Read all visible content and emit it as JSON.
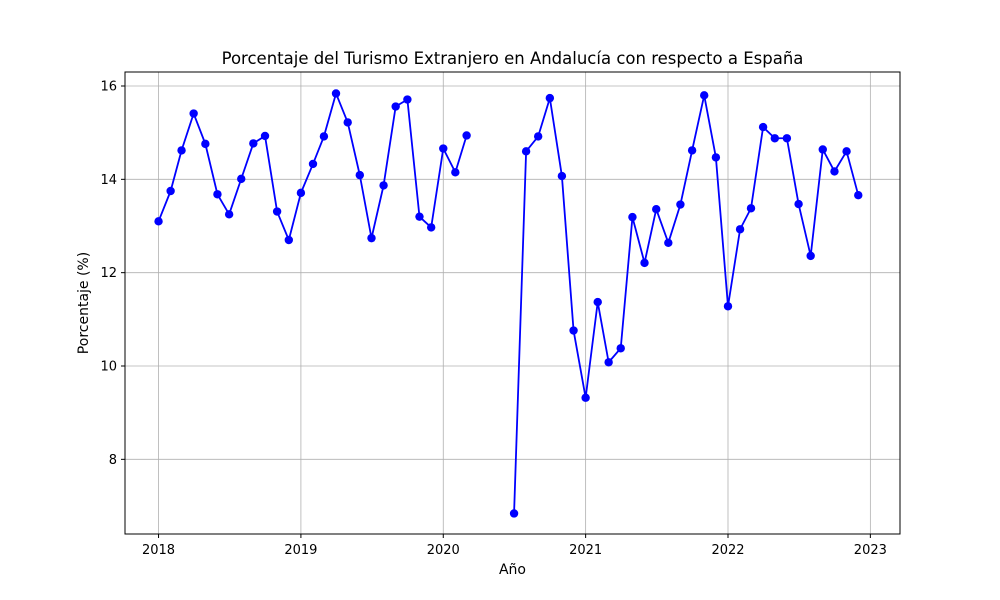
{
  "chart_data": {
    "type": "line",
    "title": "Porcentaje del Turismo Extranjero en Andalucía con respecto a España",
    "xlabel": "Año",
    "ylabel": "Porcentaje (%)",
    "x_ticks": [
      "2018",
      "2019",
      "2020",
      "2021",
      "2022",
      "2023"
    ],
    "y_ticks": [
      8,
      10,
      12,
      14,
      16
    ],
    "xlim": [
      "2017-10-07",
      "2023-03-18"
    ],
    "ylim": [
      6.4,
      16.3
    ],
    "grid": true,
    "line_color": "#0000ff",
    "marker": "circle",
    "series": [
      {
        "segments": [
          {
            "x": [
              "2018-01",
              "2018-02",
              "2018-03",
              "2018-04",
              "2018-05",
              "2018-06",
              "2018-07",
              "2018-08",
              "2018-09",
              "2018-10",
              "2018-11",
              "2018-12",
              "2019-01",
              "2019-02",
              "2019-03",
              "2019-04",
              "2019-05",
              "2019-06",
              "2019-07",
              "2019-08",
              "2019-09",
              "2019-10",
              "2019-11",
              "2019-12",
              "2020-01",
              "2020-02",
              "2020-03"
            ],
            "y": [
              13.1,
              13.75,
              14.62,
              15.41,
              14.76,
              13.68,
              13.25,
              14.01,
              14.77,
              14.93,
              13.31,
              12.7,
              13.71,
              14.33,
              14.92,
              15.84,
              15.22,
              14.09,
              12.74,
              13.87,
              15.56,
              15.71,
              13.2,
              12.97,
              14.66,
              14.15,
              14.94
            ]
          },
          {
            "x": [
              "2020-07",
              "2020-08",
              "2020-09",
              "2020-10",
              "2020-11",
              "2020-12",
              "2021-01",
              "2021-02",
              "2021-03",
              "2021-04",
              "2021-05",
              "2021-06",
              "2021-07",
              "2021-08",
              "2021-09",
              "2021-10",
              "2021-11",
              "2021-12",
              "2022-01",
              "2022-02",
              "2022-03",
              "2022-04",
              "2022-05",
              "2022-06",
              "2022-07",
              "2022-08",
              "2022-09",
              "2022-10",
              "2022-11",
              "2022-12"
            ],
            "y": [
              6.84,
              14.6,
              14.92,
              15.74,
              14.07,
              10.76,
              9.32,
              11.37,
              10.08,
              10.38,
              13.19,
              12.21,
              13.36,
              12.64,
              13.46,
              14.62,
              15.8,
              14.47,
              11.28,
              12.93,
              13.38,
              15.12,
              14.88,
              14.88,
              13.47,
              12.36,
              14.64,
              14.17,
              14.6,
              13.66
            ]
          }
        ]
      }
    ]
  }
}
